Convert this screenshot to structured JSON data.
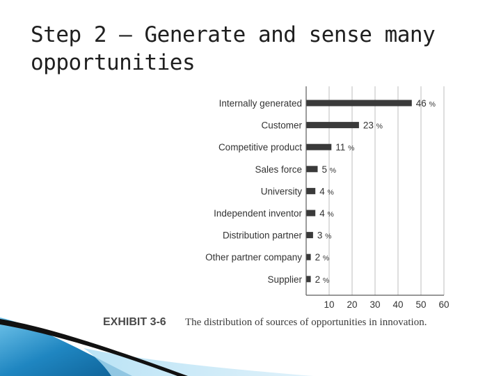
{
  "slide": {
    "title": "Step 2 – Generate and sense many opportunities"
  },
  "caption": {
    "label": "EXHIBIT 3-6",
    "text": "The distribution of sources of opportunities in innovation."
  },
  "colors": {
    "bar": "#3a3a3a",
    "gridline": "#bdbdbd",
    "axis": "#5a5a5a",
    "swoosh_blue": "#1f86c1",
    "swoosh_dark": "#111111"
  },
  "chart_data": {
    "type": "bar",
    "orientation": "horizontal",
    "categories": [
      "Internally generated",
      "Customer",
      "Competitive product",
      "Sales force",
      "University",
      "Independent inventor",
      "Distribution partner",
      "Other partner company",
      "Supplier"
    ],
    "values": [
      46,
      23,
      11,
      5,
      4,
      4,
      3,
      2,
      2
    ],
    "value_suffix": "%",
    "x_ticks": [
      10,
      20,
      30,
      40,
      50,
      60
    ],
    "xlim": [
      0,
      60
    ],
    "grid": true,
    "title": "",
    "xlabel": "",
    "ylabel": ""
  }
}
